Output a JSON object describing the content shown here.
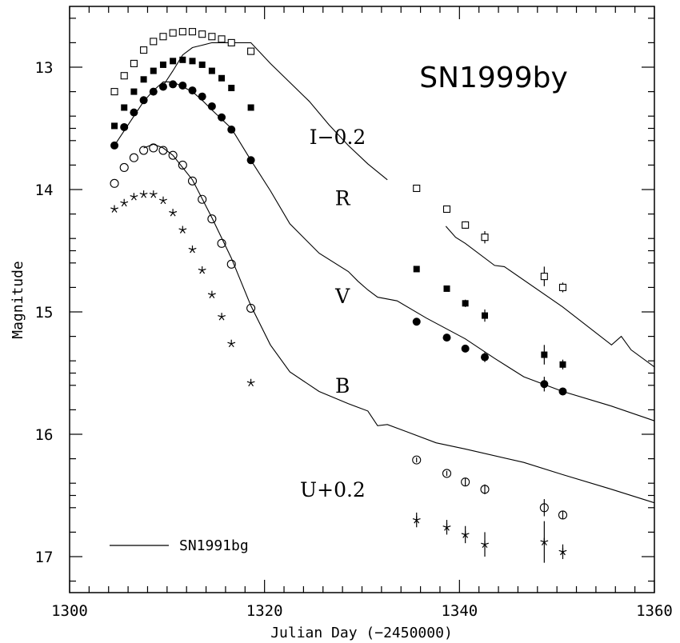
{
  "chart_data": {
    "type": "scatter",
    "title": "SN1999by",
    "xlabel": "Julian Day (−2450000)",
    "ylabel": "Magnitude",
    "xlim": [
      1300,
      1360
    ],
    "ylim": [
      17.3,
      12.5
    ],
    "y_inverted": true,
    "x_ticks": [
      "1300",
      "1320",
      "1340",
      "1360"
    ],
    "y_ticks": [
      "13",
      "14",
      "15",
      "16",
      "17"
    ],
    "band_labels": [
      {
        "text": "I−0.2",
        "x": 1327.5,
        "y": 13.57
      },
      {
        "text": "R",
        "x": 1328.0,
        "y": 14.07
      },
      {
        "text": "V",
        "x": 1328.0,
        "y": 14.87
      },
      {
        "text": "B",
        "x": 1328.0,
        "y": 15.6
      },
      {
        "text": "U+0.2",
        "x": 1327.0,
        "y": 16.45
      }
    ],
    "legend": {
      "label": "SN1991bg",
      "position": "bottom-left"
    },
    "series": [
      {
        "name": "I−0.2",
        "marker": "open-square",
        "points": [
          [
            1304.6,
            13.2
          ],
          [
            1305.6,
            13.07
          ],
          [
            1306.6,
            12.97
          ],
          [
            1307.6,
            12.86
          ],
          [
            1308.6,
            12.79
          ],
          [
            1309.6,
            12.75
          ],
          [
            1310.6,
            12.72
          ],
          [
            1311.6,
            12.71
          ],
          [
            1312.6,
            12.71
          ],
          [
            1313.6,
            12.73
          ],
          [
            1314.6,
            12.75
          ],
          [
            1315.6,
            12.77
          ],
          [
            1316.6,
            12.8
          ],
          [
            1318.6,
            12.87
          ],
          [
            1335.6,
            13.99
          ],
          [
            1338.7,
            14.16
          ],
          [
            1340.6,
            14.29
          ],
          [
            1342.6,
            14.39
          ],
          [
            1348.7,
            14.71
          ],
          [
            1350.6,
            14.8
          ]
        ],
        "errors": [
          0,
          0,
          0,
          0,
          0,
          0,
          0,
          0,
          0,
          0,
          0,
          0,
          0,
          0,
          0.02,
          0.02,
          0.03,
          0.05,
          0.08,
          0.04
        ]
      },
      {
        "name": "R",
        "marker": "filled-square",
        "points": [
          [
            1304.6,
            13.48
          ],
          [
            1305.6,
            13.33
          ],
          [
            1306.6,
            13.2
          ],
          [
            1307.6,
            13.1
          ],
          [
            1308.6,
            13.03
          ],
          [
            1309.6,
            12.98
          ],
          [
            1310.6,
            12.95
          ],
          [
            1311.6,
            12.94
          ],
          [
            1312.6,
            12.95
          ],
          [
            1313.6,
            12.98
          ],
          [
            1314.6,
            13.03
          ],
          [
            1315.6,
            13.09
          ],
          [
            1316.6,
            13.17
          ],
          [
            1318.6,
            13.33
          ],
          [
            1335.6,
            14.65
          ],
          [
            1338.7,
            14.81
          ],
          [
            1340.6,
            14.93
          ],
          [
            1342.6,
            15.03
          ],
          [
            1348.7,
            15.35
          ],
          [
            1350.6,
            15.43
          ]
        ],
        "errors": [
          0,
          0,
          0,
          0,
          0,
          0,
          0,
          0,
          0,
          0,
          0,
          0,
          0,
          0,
          0.02,
          0.02,
          0.03,
          0.05,
          0.08,
          0.04
        ]
      },
      {
        "name": "V",
        "marker": "filled-circle",
        "points": [
          [
            1304.6,
            13.64
          ],
          [
            1305.6,
            13.49
          ],
          [
            1306.6,
            13.37
          ],
          [
            1307.6,
            13.27
          ],
          [
            1308.6,
            13.2
          ],
          [
            1309.6,
            13.16
          ],
          [
            1310.6,
            13.14
          ],
          [
            1311.6,
            13.15
          ],
          [
            1312.6,
            13.19
          ],
          [
            1313.6,
            13.24
          ],
          [
            1314.6,
            13.32
          ],
          [
            1315.6,
            13.41
          ],
          [
            1316.6,
            13.51
          ],
          [
            1318.6,
            13.76
          ],
          [
            1335.6,
            15.08
          ],
          [
            1338.7,
            15.21
          ],
          [
            1340.6,
            15.3
          ],
          [
            1342.6,
            15.37
          ],
          [
            1348.7,
            15.59
          ],
          [
            1350.6,
            15.65
          ]
        ],
        "errors": [
          0,
          0,
          0,
          0,
          0,
          0,
          0,
          0,
          0,
          0,
          0,
          0,
          0,
          0,
          0.02,
          0.02,
          0.03,
          0.04,
          0.06,
          0.03
        ]
      },
      {
        "name": "B",
        "marker": "open-circle",
        "points": [
          [
            1304.6,
            13.95
          ],
          [
            1305.6,
            13.82
          ],
          [
            1306.6,
            13.74
          ],
          [
            1307.6,
            13.68
          ],
          [
            1308.6,
            13.66
          ],
          [
            1309.6,
            13.68
          ],
          [
            1310.6,
            13.72
          ],
          [
            1311.6,
            13.8
          ],
          [
            1312.6,
            13.93
          ],
          [
            1313.6,
            14.08
          ],
          [
            1314.6,
            14.24
          ],
          [
            1315.6,
            14.44
          ],
          [
            1316.6,
            14.61
          ],
          [
            1318.6,
            14.97
          ],
          [
            1335.6,
            16.21
          ],
          [
            1338.7,
            16.32
          ],
          [
            1340.6,
            16.39
          ],
          [
            1342.6,
            16.45
          ],
          [
            1348.7,
            16.6
          ],
          [
            1350.6,
            16.66
          ]
        ],
        "errors": [
          0,
          0,
          0,
          0,
          0,
          0,
          0,
          0,
          0,
          0,
          0,
          0,
          0,
          0,
          0.02,
          0.02,
          0.03,
          0.04,
          0.07,
          0.03
        ]
      },
      {
        "name": "U+0.2",
        "marker": "star",
        "points": [
          [
            1304.6,
            14.16
          ],
          [
            1305.6,
            14.11
          ],
          [
            1306.6,
            14.06
          ],
          [
            1307.6,
            14.04
          ],
          [
            1308.6,
            14.04
          ],
          [
            1309.6,
            14.09
          ],
          [
            1310.6,
            14.19
          ],
          [
            1311.6,
            14.33
          ],
          [
            1312.6,
            14.49
          ],
          [
            1313.6,
            14.66
          ],
          [
            1314.6,
            14.86
          ],
          [
            1315.6,
            15.04
          ],
          [
            1316.6,
            15.26
          ],
          [
            1318.6,
            15.58
          ],
          [
            1335.6,
            16.7
          ],
          [
            1338.7,
            16.76
          ],
          [
            1340.6,
            16.82
          ],
          [
            1342.6,
            16.9
          ],
          [
            1348.7,
            16.88
          ],
          [
            1350.6,
            16.96
          ]
        ],
        "errors": [
          0,
          0,
          0,
          0,
          0,
          0,
          0,
          0,
          0,
          0,
          0,
          0,
          0,
          0,
          0.06,
          0.06,
          0.07,
          0.1,
          0.17,
          0.06
        ]
      }
    ],
    "template_curves": [
      {
        "band": "I−0.2",
        "segments": [
          [
            [
              1309.6,
              13.15
            ],
            [
              1310.6,
              13.03
            ],
            [
              1311.6,
              12.9
            ],
            [
              1312.6,
              12.84
            ],
            [
              1313.6,
              12.82
            ],
            [
              1314.6,
              12.8
            ],
            [
              1316.6,
              12.8
            ],
            [
              1318.6,
              12.8
            ],
            [
              1320.6,
              12.97
            ],
            [
              1324.6,
              13.28
            ],
            [
              1326.6,
              13.47
            ],
            [
              1328.6,
              13.64
            ],
            [
              1330.6,
              13.79
            ],
            [
              1332.6,
              13.92
            ]
          ],
          [
            [
              1338.6,
              14.3
            ],
            [
              1339.6,
              14.39
            ],
            [
              1340.6,
              14.44
            ],
            [
              1343.6,
              14.62
            ],
            [
              1344.6,
              14.63
            ],
            [
              1350.6,
              14.96
            ],
            [
              1355.6,
              15.27
            ],
            [
              1356.6,
              15.2
            ],
            [
              1357.6,
              15.31
            ],
            [
              1360,
              15.45
            ]
          ]
        ]
      },
      {
        "band": "V",
        "segments": [
          [
            [
              1304.6,
              13.64
            ],
            [
              1305.6,
              13.52
            ],
            [
              1306.6,
              13.4
            ],
            [
              1307.6,
              13.28
            ],
            [
              1308.6,
              13.19
            ],
            [
              1309.6,
              13.12
            ],
            [
              1310.6,
              13.12
            ],
            [
              1311.6,
              13.16
            ],
            [
              1312.6,
              13.2
            ],
            [
              1313.6,
              13.27
            ],
            [
              1314.6,
              13.35
            ],
            [
              1316.6,
              13.5
            ],
            [
              1318.6,
              13.76
            ],
            [
              1320.6,
              14.01
            ],
            [
              1322.6,
              14.28
            ],
            [
              1325.6,
              14.52
            ],
            [
              1328.6,
              14.67
            ],
            [
              1329.6,
              14.75
            ],
            [
              1330.6,
              14.82
            ],
            [
              1331.6,
              14.88
            ],
            [
              1333.6,
              14.91
            ],
            [
              1336.6,
              15.05
            ],
            [
              1340.6,
              15.22
            ],
            [
              1343.6,
              15.38
            ],
            [
              1346.6,
              15.53
            ],
            [
              1350.6,
              15.65
            ],
            [
              1355.6,
              15.77
            ],
            [
              1360,
              15.89
            ]
          ]
        ]
      },
      {
        "band": "B",
        "segments": [
          [
            [
              1307.6,
              13.66
            ],
            [
              1308.6,
              13.63
            ],
            [
              1309.6,
              13.66
            ],
            [
              1310.6,
              13.72
            ],
            [
              1312.6,
              13.92
            ],
            [
              1314.6,
              14.23
            ],
            [
              1316.6,
              14.56
            ],
            [
              1318.6,
              14.95
            ],
            [
              1320.6,
              15.27
            ],
            [
              1322.6,
              15.49
            ],
            [
              1325.6,
              15.65
            ],
            [
              1328.6,
              15.75
            ],
            [
              1330.6,
              15.81
            ],
            [
              1331.6,
              15.93
            ],
            [
              1332.6,
              15.92
            ],
            [
              1334.6,
              15.98
            ],
            [
              1337.6,
              16.07
            ],
            [
              1340.6,
              16.12
            ],
            [
              1346.6,
              16.23
            ],
            [
              1350.6,
              16.33
            ],
            [
              1355.6,
              16.45
            ],
            [
              1360,
              16.56
            ]
          ]
        ]
      }
    ]
  }
}
